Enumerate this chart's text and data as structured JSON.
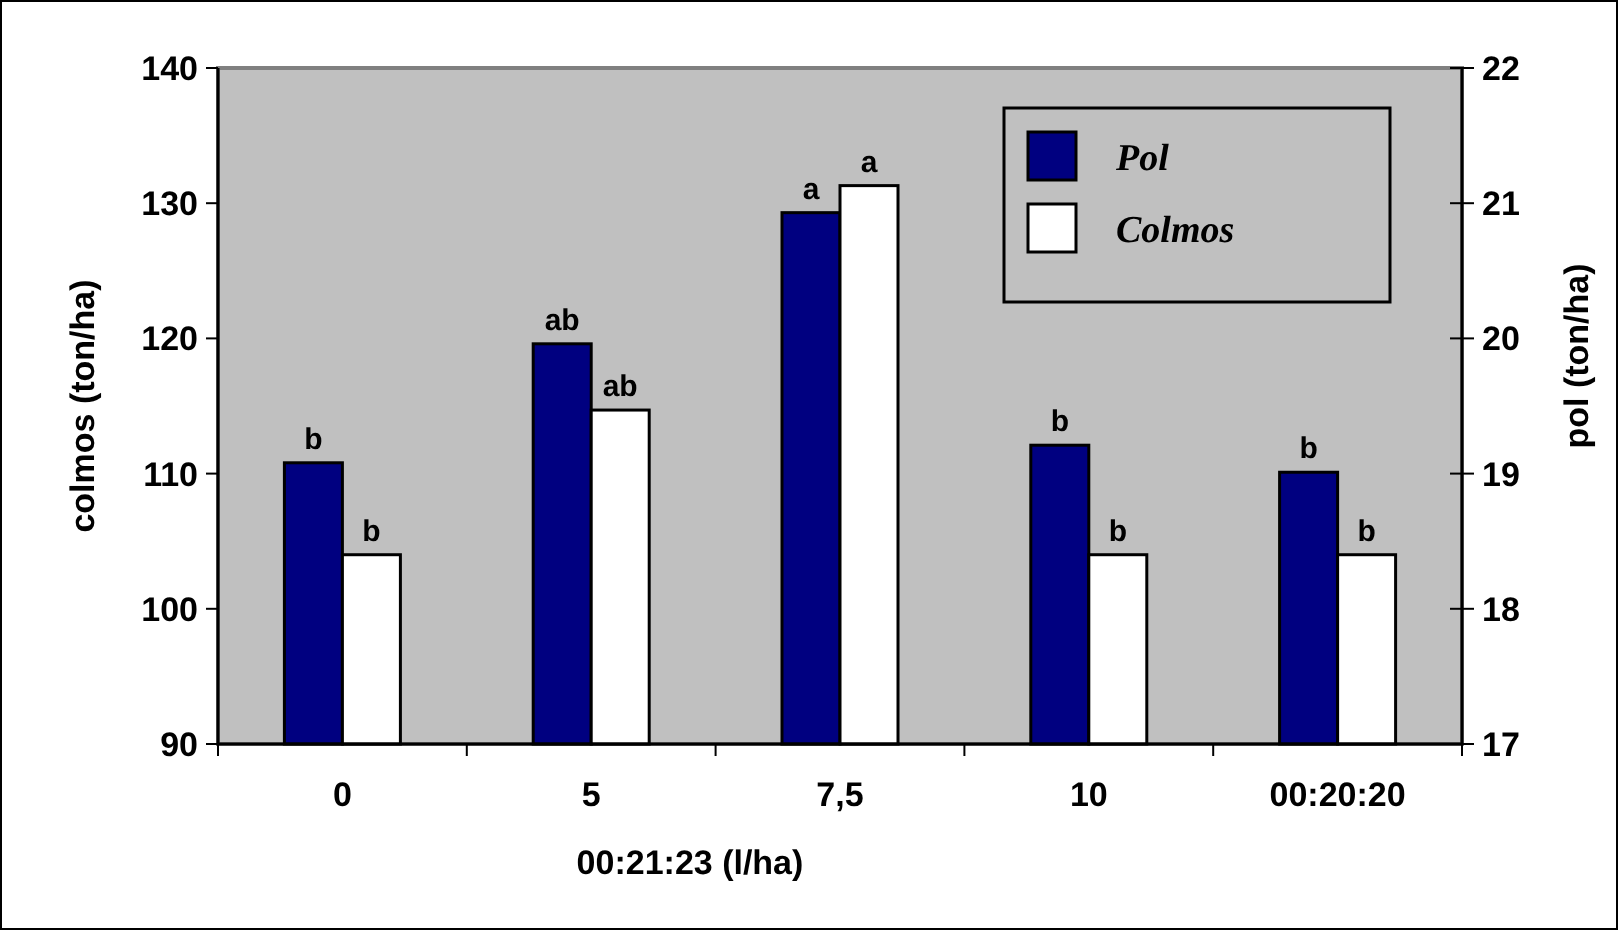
{
  "chart_data": {
    "type": "bar",
    "categories": [
      "0",
      "5",
      "7,5",
      "10",
      "00:20:20"
    ],
    "xlabel": "00:21:23 (l/ha)",
    "ylabel": "colmos (ton/ha)",
    "y2label": "pol (ton/ha)",
    "series": [
      {
        "name": "Pol",
        "color": "#000080",
        "axis": "y2",
        "values": [
          19.08,
          19.96,
          20.93,
          19.21,
          19.01
        ],
        "value_labels": [
          "b",
          "ab",
          "a",
          "b",
          "b"
        ]
      },
      {
        "name": "Colmos",
        "color": "#ffffff",
        "values": [
          104.0,
          114.7,
          131.3,
          104.0,
          104.0
        ],
        "value_labels": [
          "b",
          "ab",
          "a",
          "b",
          "b"
        ]
      }
    ],
    "ylim": [
      90,
      140
    ],
    "yticks": [
      90,
      100,
      110,
      120,
      130,
      140
    ],
    "y2lim": [
      17,
      22
    ],
    "y2ticks": [
      17,
      18,
      19,
      20,
      21,
      22
    ],
    "grid": false,
    "legend": "top right"
  }
}
